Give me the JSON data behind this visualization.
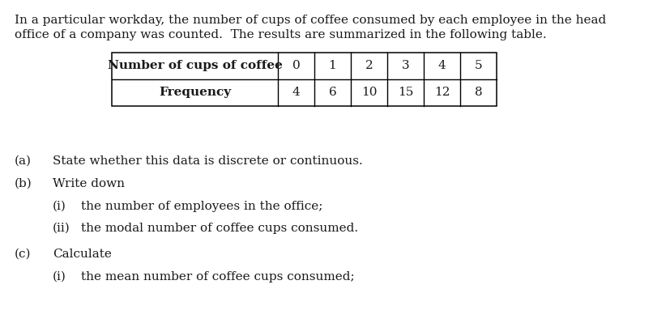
{
  "intro_text_line1": "In a particular workday, the number of cups of coffee consumed by each employee in the head",
  "intro_text_line2": "office of a company was counted.  The results are summarized in the following table.",
  "table_header_label": "Number of cups of coffee",
  "table_header_values": [
    "0",
    "1",
    "2",
    "3",
    "4",
    "5"
  ],
  "table_row_label": "Frequency",
  "table_row_values": [
    "4",
    "6",
    "10",
    "15",
    "12",
    "8"
  ],
  "q_a_label": "(a)",
  "q_a_text": "State whether this data is discrete or continuous.",
  "q_b_label": "(b)",
  "q_b_text": "Write down",
  "q_bi_label": "(i)",
  "q_bi_text": "the number of employees in the office;",
  "q_bii_label": "(ii)",
  "q_bii_text": "the modal number of coffee cups consumed.",
  "q_c_label": "(c)",
  "q_c_text": "Calculate",
  "q_ci_label": "(i)",
  "q_ci_text": "the mean number of coffee cups consumed;",
  "font_size": 11.0,
  "background_color": "#ffffff",
  "text_color": "#1a1a1a"
}
